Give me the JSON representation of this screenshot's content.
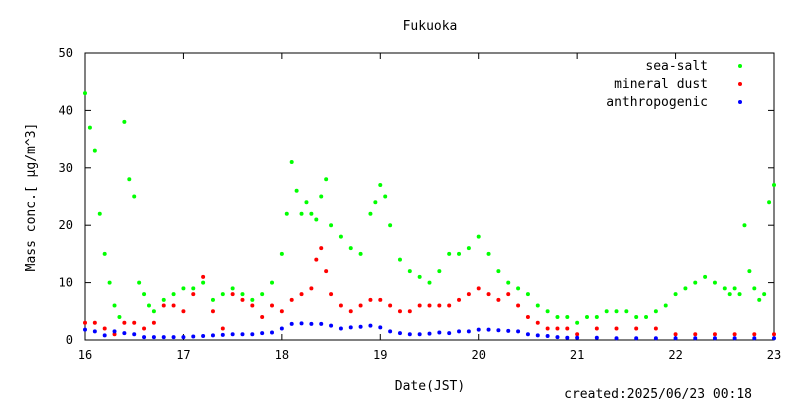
{
  "chart_data": {
    "type": "scatter",
    "title": "Fukuoka",
    "xlabel": "Date(JST)",
    "ylabel": "Mass conc.[ µg/m^3]",
    "xlim": [
      16,
      23
    ],
    "ylim": [
      0,
      50
    ],
    "x_ticks": [
      "16",
      "17",
      "18",
      "19",
      "20",
      "21",
      "22",
      "23"
    ],
    "y_ticks": [
      "0",
      "10",
      "20",
      "30",
      "40",
      "50"
    ],
    "grid": false,
    "legend": "top-right",
    "footer": "created:2025/06/23 00:18",
    "colors": {
      "sea-salt": "#00ff00",
      "mineral dust": "#ff0000",
      "anthropogenic": "#0000ff"
    },
    "series": [
      {
        "name": "sea-salt",
        "x": [
          16.0,
          16.05,
          16.1,
          16.15,
          16.2,
          16.25,
          16.3,
          16.35,
          16.4,
          16.45,
          16.5,
          16.55,
          16.6,
          16.65,
          16.7,
          16.8,
          16.9,
          17.0,
          17.1,
          17.2,
          17.3,
          17.4,
          17.5,
          17.6,
          17.7,
          17.8,
          17.9,
          18.0,
          18.05,
          18.1,
          18.15,
          18.2,
          18.25,
          18.3,
          18.35,
          18.4,
          18.45,
          18.5,
          18.6,
          18.7,
          18.8,
          18.9,
          18.95,
          19.0,
          19.05,
          19.1,
          19.2,
          19.3,
          19.4,
          19.5,
          19.6,
          19.7,
          19.8,
          19.9,
          20.0,
          20.1,
          20.2,
          20.3,
          20.4,
          20.5,
          20.6,
          20.7,
          20.8,
          20.9,
          21.0,
          21.1,
          21.2,
          21.3,
          21.4,
          21.5,
          21.6,
          21.7,
          21.8,
          21.9,
          22.0,
          22.1,
          22.2,
          22.3,
          22.4,
          22.5,
          22.55,
          22.6,
          22.65,
          22.7,
          22.75,
          22.8,
          22.85,
          22.9,
          22.95,
          23.0
        ],
        "y": [
          43,
          37,
          33,
          22,
          15,
          10,
          6,
          4,
          38,
          28,
          25,
          10,
          8,
          6,
          5,
          7,
          8,
          9,
          9,
          10,
          7,
          8,
          9,
          8,
          7,
          8,
          10,
          15,
          22,
          31,
          26,
          22,
          24,
          22,
          21,
          25,
          28,
          20,
          18,
          16,
          15,
          22,
          24,
          27,
          25,
          20,
          14,
          12,
          11,
          10,
          12,
          15,
          15,
          16,
          18,
          15,
          12,
          10,
          9,
          8,
          6,
          5,
          4,
          4,
          3,
          4,
          4,
          5,
          5,
          5,
          4,
          4,
          5,
          6,
          8,
          9,
          10,
          11,
          10,
          9,
          8,
          9,
          8,
          20,
          12,
          9,
          7,
          8,
          24,
          27
        ]
      },
      {
        "name": "mineral dust",
        "x": [
          16.0,
          16.1,
          16.2,
          16.3,
          16.4,
          16.5,
          16.6,
          16.7,
          16.8,
          16.9,
          17.0,
          17.1,
          17.2,
          17.3,
          17.4,
          17.5,
          17.6,
          17.7,
          17.8,
          17.9,
          18.0,
          18.1,
          18.2,
          18.3,
          18.35,
          18.4,
          18.45,
          18.5,
          18.6,
          18.7,
          18.8,
          18.9,
          19.0,
          19.1,
          19.2,
          19.3,
          19.4,
          19.5,
          19.6,
          19.7,
          19.8,
          19.9,
          20.0,
          20.1,
          20.2,
          20.3,
          20.4,
          20.5,
          20.6,
          20.7,
          20.8,
          20.9,
          21.0,
          21.2,
          21.4,
          21.6,
          21.8,
          22.0,
          22.2,
          22.4,
          22.6,
          22.8,
          23.0
        ],
        "y": [
          3,
          3,
          2,
          1,
          3,
          3,
          2,
          3,
          6,
          6,
          5,
          8,
          11,
          5,
          2,
          8,
          7,
          6,
          4,
          6,
          5,
          7,
          8,
          9,
          14,
          16,
          12,
          8,
          6,
          5,
          6,
          7,
          7,
          6,
          5,
          5,
          6,
          6,
          6,
          6,
          7,
          8,
          9,
          8,
          7,
          8,
          6,
          4,
          3,
          2,
          2,
          2,
          1,
          2,
          2,
          2,
          2,
          1,
          1,
          1,
          1,
          1,
          1
        ]
      },
      {
        "name": "anthropogenic",
        "x": [
          16.0,
          16.1,
          16.2,
          16.3,
          16.4,
          16.5,
          16.6,
          16.7,
          16.8,
          16.9,
          17.0,
          17.1,
          17.2,
          17.3,
          17.4,
          17.5,
          17.6,
          17.7,
          17.8,
          17.9,
          18.0,
          18.1,
          18.2,
          18.3,
          18.4,
          18.5,
          18.6,
          18.7,
          18.8,
          18.9,
          19.0,
          19.1,
          19.2,
          19.3,
          19.4,
          19.5,
          19.6,
          19.7,
          19.8,
          19.9,
          20.0,
          20.1,
          20.2,
          20.3,
          20.4,
          20.5,
          20.6,
          20.7,
          20.8,
          20.9,
          21.0,
          21.2,
          21.4,
          21.6,
          21.8,
          22.0,
          22.2,
          22.4,
          22.6,
          22.8,
          23.0
        ],
        "y": [
          1.8,
          1.5,
          0.8,
          1.5,
          1.2,
          1.0,
          0.5,
          0.5,
          0.5,
          0.5,
          0.5,
          0.6,
          0.7,
          0.8,
          0.9,
          1.0,
          1.0,
          1.0,
          1.2,
          1.3,
          2.0,
          2.8,
          2.9,
          2.8,
          2.8,
          2.5,
          2.0,
          2.2,
          2.3,
          2.5,
          2.2,
          1.5,
          1.2,
          1.0,
          1.0,
          1.1,
          1.3,
          1.2,
          1.5,
          1.5,
          1.8,
          1.8,
          1.7,
          1.6,
          1.5,
          1.0,
          0.8,
          0.7,
          0.5,
          0.4,
          0.4,
          0.4,
          0.3,
          0.3,
          0.3,
          0.3,
          0.3,
          0.3,
          0.3,
          0.3,
          0.3
        ]
      }
    ]
  }
}
